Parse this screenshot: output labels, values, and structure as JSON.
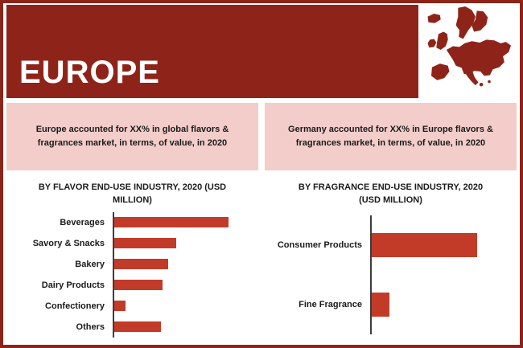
{
  "theme": {
    "primary": "#8e2419",
    "highlight_bg": "#f3cdca",
    "bar": "#c23b28",
    "text": "#1a1a1a"
  },
  "header": {
    "title": "EUROPE"
  },
  "highlights": [
    {
      "text": "Europe accounted for XX% in global flavors & fragrances market, in terms, of value, in 2020"
    },
    {
      "text": "Germany accounted for XX% in Europe flavors & fragrances market, in terms, of value, in 2020"
    }
  ],
  "chart_data": [
    {
      "type": "bar",
      "orientation": "horizontal",
      "title": "BY FLAVOR END-USE INDUSTRY, 2020 (USD MILLION)",
      "categories": [
        "Beverages",
        "Savory & Snacks",
        "Bakery",
        "Dairy Products",
        "Confectionery",
        "Others"
      ],
      "values": [
        100,
        54,
        47,
        42,
        10,
        41
      ],
      "values_note": "relative bar lengths; numeric axis values not shown in image",
      "xlim": [
        0,
        124
      ],
      "bar_color": "#c23b28",
      "grid": false,
      "legend": false
    },
    {
      "type": "bar",
      "orientation": "horizontal",
      "title": "BY FRAGRANCE END-USE INDUSTRY, 2020 (USD MILLION)",
      "categories": [
        "Consumer Products",
        "Fine Fragrance"
      ],
      "values": [
        100,
        17
      ],
      "values_note": "relative bar lengths; numeric axis values not shown in image",
      "xlim": [
        0,
        137
      ],
      "bar_color": "#c23b28",
      "grid": false,
      "legend": false
    }
  ]
}
